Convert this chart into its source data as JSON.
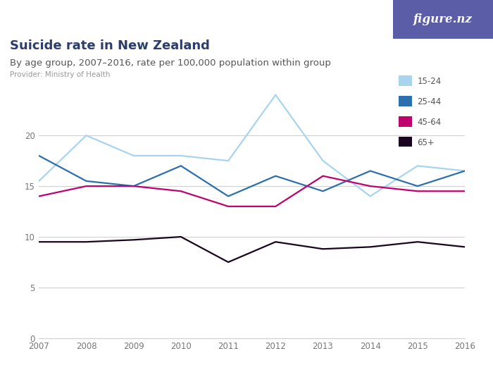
{
  "title": "Suicide rate in New Zealand",
  "subtitle": "By age group, 2007–2016, rate per 100,000 population within group",
  "provider": "Provider: Ministry of Health",
  "years": [
    2007,
    2008,
    2009,
    2010,
    2011,
    2012,
    2013,
    2014,
    2015,
    2016
  ],
  "series": {
    "15-24": [
      15.5,
      20.0,
      18.0,
      18.0,
      17.5,
      24.0,
      17.5,
      14.0,
      17.0,
      16.5
    ],
    "25-44": [
      18.0,
      15.5,
      15.0,
      17.0,
      14.0,
      16.0,
      14.5,
      16.5,
      15.0,
      16.5
    ],
    "45-64": [
      14.0,
      15.0,
      15.0,
      14.5,
      13.0,
      13.0,
      16.0,
      15.0,
      14.5,
      14.5
    ],
    "65+": [
      9.5,
      9.5,
      9.7,
      10.0,
      7.5,
      9.5,
      8.8,
      9.0,
      9.5,
      9.0
    ]
  },
  "colors": {
    "15-24": "#a8d4f0",
    "25-44": "#2b6faf",
    "45-64": "#c0006e",
    "65+": "#1a0520"
  },
  "ylim": [
    0,
    25
  ],
  "yticks": [
    0,
    5,
    10,
    15,
    20
  ],
  "background_color": "#ffffff",
  "plot_bg_color": "#ffffff",
  "grid_color": "#d0d0d0",
  "title_color": "#2c3e6b",
  "subtitle_color": "#555555",
  "provider_color": "#999999",
  "tick_color": "#777777",
  "title_fontsize": 13,
  "subtitle_fontsize": 9.5,
  "provider_fontsize": 7.5,
  "legend_fontsize": 8.5,
  "tick_fontsize": 8.5,
  "logo_bg_color": "#5b5ea6",
  "logo_text": "figure.nz"
}
